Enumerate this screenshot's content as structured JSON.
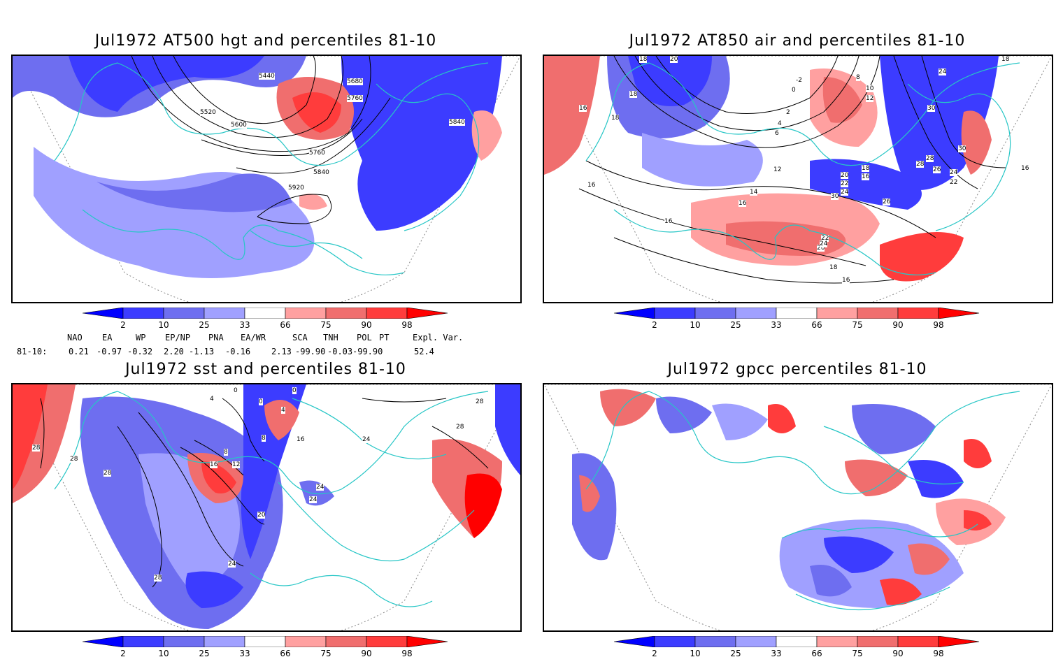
{
  "panels": [
    {
      "title": "Jul1972 AT500 hgt and percentiles 81-10",
      "contour_labels": [
        "5440",
        "5520",
        "5600",
        "5680",
        "5760",
        "5760",
        "5840",
        "5840",
        "5920"
      ]
    },
    {
      "title": "Jul1972 AT850 air and percentiles 81-10",
      "contour_labels": [
        "18",
        "20",
        "18",
        "16",
        "18",
        "-2",
        "0",
        "2",
        "4",
        "6",
        "8",
        "10",
        "12",
        "12",
        "14",
        "16",
        "16",
        "16",
        "16",
        "18",
        "20",
        "22",
        "24",
        "26",
        "28",
        "30",
        "30",
        "24",
        "22",
        "20",
        "18",
        "16",
        "16",
        "24",
        "18",
        "30",
        "28",
        "26",
        "24",
        "22"
      ]
    },
    {
      "title": "Jul1972 sst and percentiles 81-10",
      "contour_labels": [
        "28",
        "28",
        "28",
        "0",
        "0",
        "0",
        "4",
        "4",
        "8",
        "8",
        "12",
        "16",
        "16",
        "20",
        "24",
        "24",
        "24",
        "24",
        "28",
        "28",
        "28"
      ]
    },
    {
      "title": "Jul1972 gpcc percentiles 81-10",
      "contour_labels": []
    }
  ],
  "colorbar": {
    "labels": [
      "2",
      "10",
      "25",
      "33",
      "66",
      "75",
      "90",
      "98"
    ],
    "colors": [
      "#0000ff",
      "#3c3cff",
      "#6e6ef0",
      "#a0a0ff",
      "#ffffff",
      "#ffa0a0",
      "#f06e6e",
      "#ff3c3c",
      "#ff0000"
    ]
  },
  "teleconnections": {
    "headers": [
      "NAO",
      "EA",
      "WP",
      "EP/NP",
      "PNA",
      "EA/WR",
      "SCA",
      "TNH",
      "POL",
      "PT",
      "Expl. Var."
    ],
    "row_label": "81-10:",
    "values": [
      "0.21",
      "-0.97",
      "-0.32",
      "2.20",
      "-1.13",
      "-0.16",
      "2.13",
      "-99.90",
      "-0.03",
      "-99.90",
      "52.4"
    ]
  },
  "colors": {
    "coast": "#26c6c6",
    "low": "#3c3cff",
    "high": "#ff3c3c",
    "contour": "#000000"
  }
}
